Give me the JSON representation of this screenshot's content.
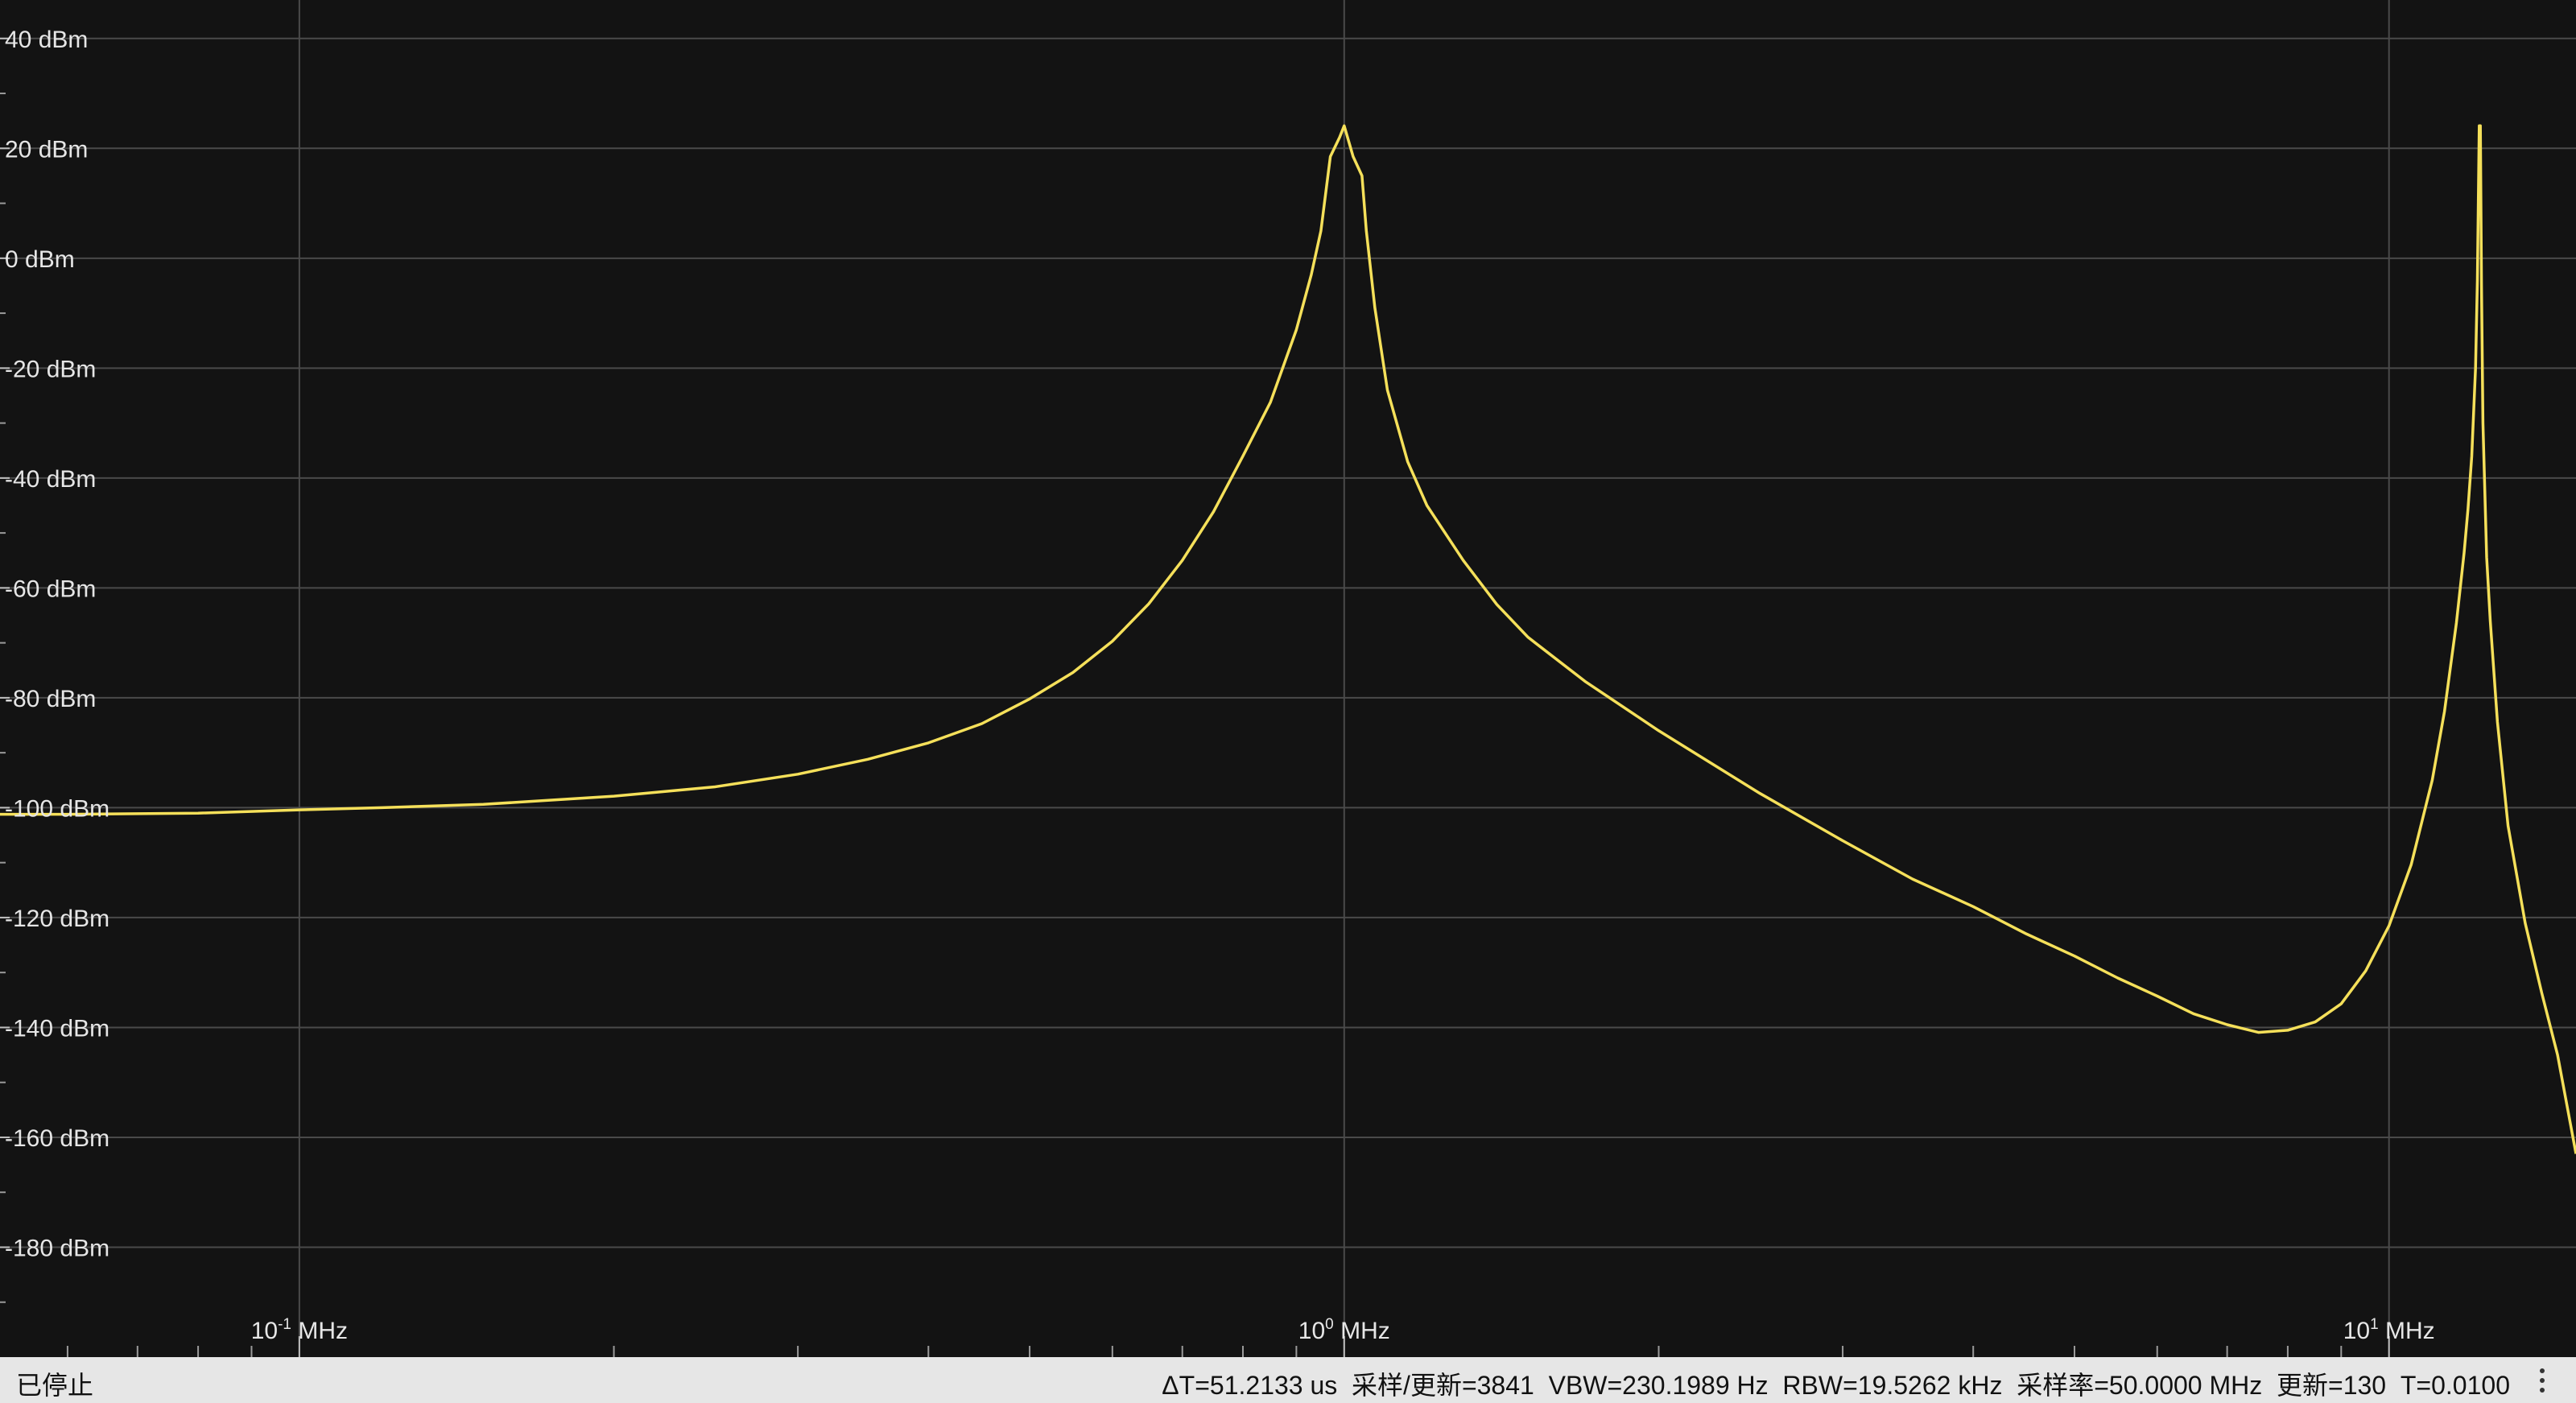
{
  "chart_data": {
    "type": "line",
    "title": "",
    "xlabel": "",
    "ylabel": "",
    "x_scale": "log",
    "xlim_mhz": [
      0.0517,
      15.1
    ],
    "ylim": [
      -200,
      47
    ],
    "y_ticks": [
      40,
      20,
      0,
      -20,
      -40,
      -60,
      -80,
      -100,
      -120,
      -140,
      -160,
      -180
    ],
    "y_tick_labels": [
      "40 dBm",
      "20 dBm",
      "0 dBm",
      "-20 dBm",
      "-40 dBm",
      "-60 dBm",
      "-80 dBm",
      "-100 dBm",
      "-120 dBm",
      "-140 dBm",
      "-160 dBm",
      "-180 dBm"
    ],
    "x_ticks": [
      {
        "value": 0.1,
        "base": "10",
        "exp": "-1",
        "unit": "MHz"
      },
      {
        "value": 1,
        "base": "10",
        "exp": "0",
        "unit": "MHz"
      },
      {
        "value": 10,
        "base": "10",
        "exp": "1",
        "unit": "MHz"
      }
    ],
    "grid": true,
    "legend": "none",
    "series": [
      {
        "color": "#f5e05a",
        "points": [
          [
            0.0517,
            -101.2
          ],
          [
            0.06,
            -101.2
          ],
          [
            0.07,
            -101.1
          ],
          [
            0.08,
            -101.0
          ],
          [
            0.1,
            -100.4
          ],
          [
            0.12,
            -100.0
          ],
          [
            0.15,
            -99.4
          ],
          [
            0.2,
            -97.9
          ],
          [
            0.25,
            -96.2
          ],
          [
            0.3,
            -93.9
          ],
          [
            0.35,
            -91.2
          ],
          [
            0.4,
            -88.2
          ],
          [
            0.45,
            -84.7
          ],
          [
            0.5,
            -80.2
          ],
          [
            0.55,
            -75.4
          ],
          [
            0.6,
            -69.7
          ],
          [
            0.65,
            -62.9
          ],
          [
            0.7,
            -55.0
          ],
          [
            0.75,
            -46.1
          ],
          [
            0.8,
            -36.0
          ],
          [
            0.85,
            -26.2
          ],
          [
            0.9,
            -13.0
          ],
          [
            0.93,
            -3.0
          ],
          [
            0.95,
            5.0
          ],
          [
            0.97,
            18.5
          ],
          [
            0.99,
            22.0
          ],
          [
            1.0,
            24.1
          ],
          [
            1.02,
            18.5
          ],
          [
            1.04,
            15.0
          ],
          [
            1.05,
            5.0
          ],
          [
            1.07,
            -9.0
          ],
          [
            1.1,
            -24.0
          ],
          [
            1.15,
            -37.0
          ],
          [
            1.2,
            -45.0
          ],
          [
            1.3,
            -55.0
          ],
          [
            1.4,
            -63.0
          ],
          [
            1.5,
            -69.0
          ],
          [
            1.7,
            -77.0
          ],
          [
            2.0,
            -86.0
          ],
          [
            2.5,
            -97.4
          ],
          [
            3.0,
            -106.0
          ],
          [
            3.5,
            -113.0
          ],
          [
            4.0,
            -118.0
          ],
          [
            4.5,
            -123.0
          ],
          [
            5.0,
            -127.0
          ],
          [
            5.5,
            -131.0
          ],
          [
            6.0,
            -134.3
          ],
          [
            6.5,
            -137.5
          ],
          [
            7.0,
            -139.5
          ],
          [
            7.5,
            -140.9
          ],
          [
            8.0,
            -140.5
          ],
          [
            8.5,
            -139.0
          ],
          [
            9.0,
            -135.7
          ],
          [
            9.5,
            -129.7
          ],
          [
            10.0,
            -121.5
          ],
          [
            10.5,
            -110.4
          ],
          [
            11.0,
            -95.0
          ],
          [
            11.3,
            -82.5
          ],
          [
            11.6,
            -66.4
          ],
          [
            11.8,
            -53.6
          ],
          [
            11.9,
            -45.7
          ],
          [
            12.0,
            -36.0
          ],
          [
            12.1,
            -20.0
          ],
          [
            12.15,
            -4.0
          ],
          [
            12.2,
            24.1
          ],
          [
            12.23,
            24.1
          ],
          [
            12.26,
            -5.0
          ],
          [
            12.3,
            -30.0
          ],
          [
            12.4,
            -54.4
          ],
          [
            12.5,
            -66.0
          ],
          [
            12.7,
            -84.4
          ],
          [
            13.0,
            -103.3
          ],
          [
            13.5,
            -121.0
          ],
          [
            14.0,
            -133.7
          ],
          [
            14.5,
            -145.0
          ],
          [
            15.1,
            -163.0
          ]
        ]
      }
    ]
  },
  "status": {
    "state": "已停止",
    "metrics": "ΔT=51.2133 us  采样/更新=3841  VBW=230.1989 Hz  RBW=19.5262 kHz  采样率=50.0000 MHz  更新=130  T=0.0100"
  },
  "colors": {
    "background": "#131313",
    "grid": "#4a4a4a",
    "trace": "#f5e05a",
    "statusbar": "#e6e6e6"
  },
  "icons": {
    "menu": "vertical-ellipsis-icon"
  }
}
